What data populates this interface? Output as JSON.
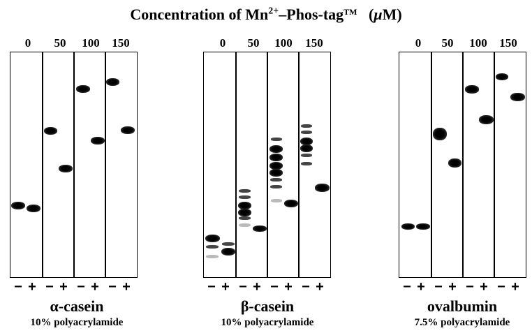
{
  "title": {
    "prefix": "Concentration of Mn",
    "superscript": "2+",
    "suffix": "–Phos-tag",
    "trademark": "TM",
    "unit_open": "(",
    "unit": "μ",
    "unit_rest": "M)"
  },
  "concentrations": [
    "0",
    "50",
    "100",
    "150"
  ],
  "lane_signs": [
    "−",
    "+",
    "−",
    "+",
    "−",
    "+",
    "−",
    "+"
  ],
  "panels": [
    {
      "protein": "α-casein",
      "gel": "10% polyacrylamide"
    },
    {
      "protein": "β-casein",
      "gel": "10% polyacrylamide"
    },
    {
      "protein": "ovalbumin",
      "gel": "7.5% polyacrylamide"
    }
  ]
}
